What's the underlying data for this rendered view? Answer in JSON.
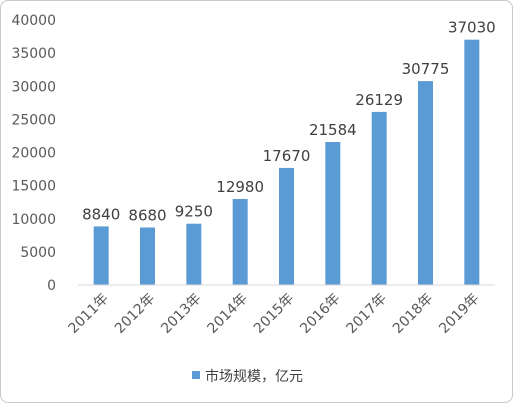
{
  "chart_data": {
    "type": "bar",
    "categories": [
      "2011年",
      "2012年",
      "2013年",
      "2014年",
      "2015年",
      "2016年",
      "2017年",
      "2018年",
      "2019年"
    ],
    "series": [
      {
        "name": "市场规模，亿元",
        "values": [
          8840,
          8680,
          9250,
          12980,
          17670,
          21584,
          26129,
          30775,
          37030
        ],
        "color": "#5b9bd5"
      }
    ],
    "ylim": [
      0,
      40000
    ],
    "yticks": [
      0,
      5000,
      10000,
      15000,
      20000,
      25000,
      30000,
      35000,
      40000
    ],
    "grid": false,
    "legend": "bottom",
    "data_labels": true
  }
}
